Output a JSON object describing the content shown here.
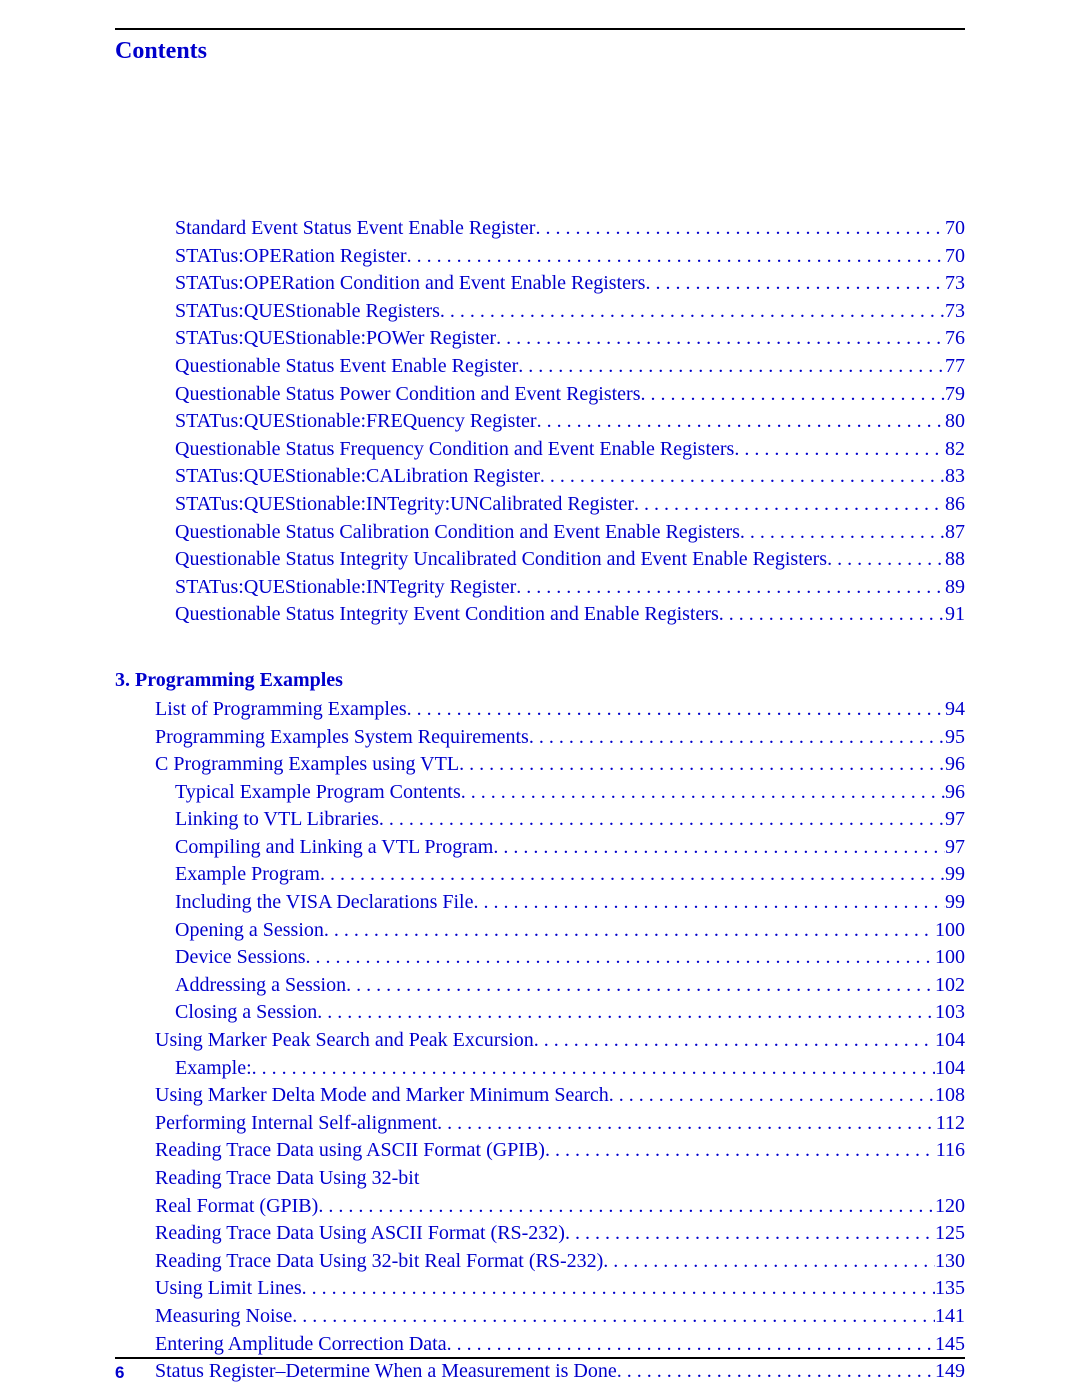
{
  "header": {
    "title": "Contents"
  },
  "sections": [
    {
      "heading": null,
      "entries": [
        {
          "text": "Standard Event Status Event Enable Register",
          "page": "70",
          "indent": 2
        },
        {
          "text": "STATus:OPERation Register",
          "page": "70",
          "indent": 2
        },
        {
          "text": "STATus:OPERation Condition and Event Enable Registers",
          "page": "73",
          "indent": 2
        },
        {
          "text": "STATus:QUEStionable Registers",
          "page": "73",
          "indent": 2
        },
        {
          "text": "STATus:QUEStionable:POWer Register",
          "page": "76",
          "indent": 2
        },
        {
          "text": "Questionable Status Event Enable Register",
          "page": "77",
          "indent": 2
        },
        {
          "text": "Questionable Status Power Condition and Event Registers",
          "page": "79",
          "indent": 2
        },
        {
          "text": "STATus:QUEStionable:FREQuency Register",
          "page": "80",
          "indent": 2
        },
        {
          "text": "Questionable Status Frequency Condition and Event Enable Registers",
          "page": "82",
          "indent": 2
        },
        {
          "text": "STATus:QUEStionable:CALibration Register",
          "page": "83",
          "indent": 2
        },
        {
          "text": "STATus:QUEStionable:INTegrity:UNCalibrated Register",
          "page": "86",
          "indent": 2
        },
        {
          "text": "Questionable Status Calibration Condition and Event Enable Registers",
          "page": "87",
          "indent": 2
        },
        {
          "text": "Questionable Status Integrity Uncalibrated Condition and Event Enable Registers",
          "page": "88",
          "indent": 2
        },
        {
          "text": "STATus:QUEStionable:INTegrity Register",
          "page": "89",
          "indent": 2
        },
        {
          "text": "Questionable Status Integrity Event Condition and Enable Registers",
          "page": "91",
          "indent": 2
        }
      ]
    },
    {
      "heading": "3. Programming Examples",
      "entries": [
        {
          "text": "List of Programming Examples",
          "page": "94",
          "indent": 1
        },
        {
          "text": "Programming Examples System Requirements",
          "page": "95",
          "indent": 1
        },
        {
          "text": "C Programming Examples using VTL",
          "page": "96",
          "indent": 1
        },
        {
          "text": "Typical Example Program Contents",
          "page": "96",
          "indent": 2
        },
        {
          "text": "Linking to VTL Libraries",
          "page": "97",
          "indent": 2
        },
        {
          "text": "Compiling and Linking a VTL Program",
          "page": "97",
          "indent": 2
        },
        {
          "text": "Example Program",
          "page": "99",
          "indent": 2
        },
        {
          "text": "Including the VISA Declarations File",
          "page": "99",
          "indent": 2
        },
        {
          "text": "Opening a Session",
          "page": "100",
          "indent": 2
        },
        {
          "text": "Device Sessions",
          "page": "100",
          "indent": 2
        },
        {
          "text": "Addressing a Session",
          "page": "102",
          "indent": 2
        },
        {
          "text": "Closing a Session",
          "page": "103",
          "indent": 2
        },
        {
          "text": "Using Marker Peak Search and Peak Excursion",
          "page": "104",
          "indent": 1
        },
        {
          "text": "Example:",
          "page": "104",
          "indent": 2
        },
        {
          "text": "Using Marker Delta Mode and Marker Minimum Search",
          "page": "108",
          "indent": 1
        },
        {
          "text": "Performing Internal Self-alignment",
          "page": "112",
          "indent": 1
        },
        {
          "text": "Reading Trace Data using ASCII Format (GPIB)",
          "page": "116",
          "indent": 1
        },
        {
          "text": "Reading Trace Data Using 32-bit",
          "page": null,
          "indent": 1,
          "noDots": true
        },
        {
          "text": "Real Format (GPIB)",
          "page": "120",
          "indent": 1
        },
        {
          "text": "Reading Trace Data Using ASCII Format (RS-232)",
          "page": "125",
          "indent": 1
        },
        {
          "text": "Reading Trace Data Using 32-bit Real Format (RS-232)",
          "page": "130",
          "indent": 1
        },
        {
          "text": "Using Limit Lines",
          "page": "135",
          "indent": 1
        },
        {
          "text": "Measuring Noise",
          "page": "141",
          "indent": 1
        },
        {
          "text": "Entering Amplitude Correction Data",
          "page": "145",
          "indent": 1
        },
        {
          "text": "Status Register–Determine When a Measurement is Done",
          "page": "149",
          "indent": 1
        }
      ]
    }
  ],
  "footer": {
    "pageNumber": "6"
  },
  "style": {
    "linkColor": "#0000cc",
    "textColor": "#000000",
    "pageWidth": 1080,
    "pageHeight": 1397,
    "baseFontSize": 20,
    "titleFontSize": 24,
    "fontFamily": "Times New Roman"
  }
}
